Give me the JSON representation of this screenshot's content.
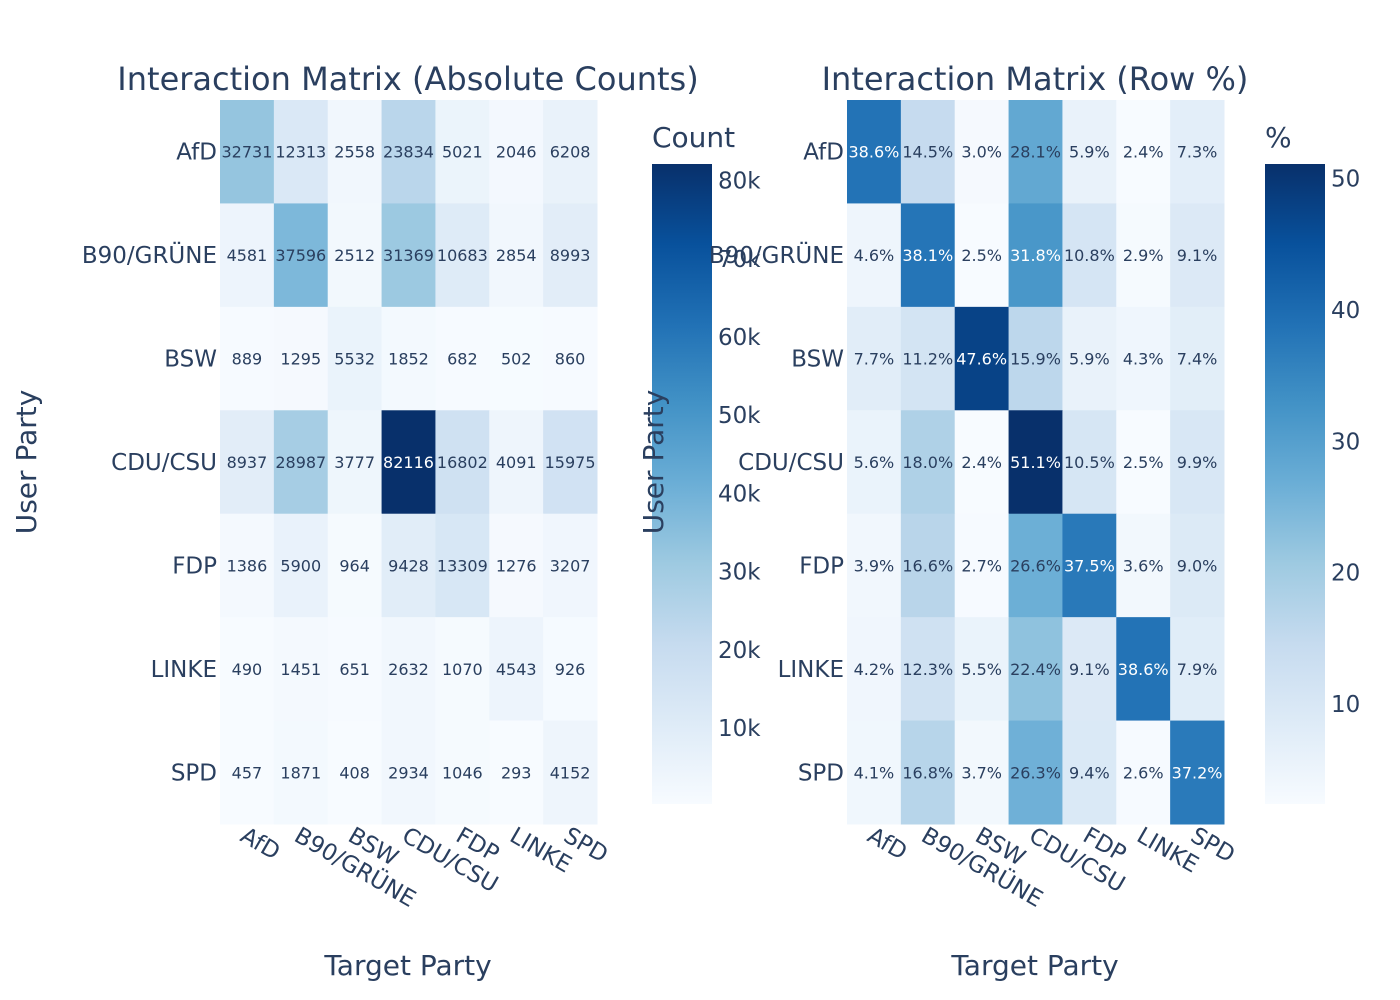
{
  "chart_data": [
    {
      "type": "heatmap",
      "title": "Interaction Matrix (Absolute Counts)",
      "xlabel": "Target Party",
      "ylabel": "User Party",
      "x": [
        "AfD",
        "B90/GRÜNE",
        "BSW",
        "CDU/CSU",
        "FDP",
        "LINKE",
        "SPD"
      ],
      "y": [
        "AfD",
        "B90/GRÜNE",
        "BSW",
        "CDU/CSU",
        "FDP",
        "LINKE",
        "SPD"
      ],
      "z": [
        [
          32731,
          12313,
          2558,
          23834,
          5021,
          2046,
          6208
        ],
        [
          4581,
          37596,
          2512,
          31369,
          10683,
          2854,
          8993
        ],
        [
          889,
          1295,
          5532,
          1852,
          682,
          502,
          860
        ],
        [
          8937,
          28987,
          3777,
          82116,
          16802,
          4091,
          15975
        ],
        [
          1386,
          5900,
          964,
          9428,
          13309,
          1276,
          3207
        ],
        [
          490,
          1451,
          651,
          2632,
          1070,
          4543,
          926
        ],
        [
          457,
          1871,
          408,
          2934,
          1046,
          293,
          4152
        ]
      ],
      "text": [
        [
          "32731",
          "12313",
          "2558",
          "23834",
          "5021",
          "2046",
          "6208"
        ],
        [
          "4581",
          "37596",
          "2512",
          "31369",
          "10683",
          "2854",
          "8993"
        ],
        [
          "889",
          "1295",
          "5532",
          "1852",
          "682",
          "502",
          "860"
        ],
        [
          "8937",
          "28987",
          "3777",
          "82116",
          "16802",
          "4091",
          "15975"
        ],
        [
          "1386",
          "5900",
          "964",
          "9428",
          "13309",
          "1276",
          "3207"
        ],
        [
          "490",
          "1451",
          "651",
          "2632",
          "1070",
          "4543",
          "926"
        ],
        [
          "457",
          "1871",
          "408",
          "2934",
          "1046",
          "293",
          "4152"
        ]
      ],
      "colorscale": "Blues",
      "zrange": [
        293,
        82116
      ],
      "colorbar": {
        "title": "Count",
        "tickvals": [
          10000,
          20000,
          30000,
          40000,
          50000,
          60000,
          70000,
          80000
        ],
        "ticktext": [
          "10k",
          "20k",
          "30k",
          "40k",
          "50k",
          "60k",
          "70k",
          "80k"
        ]
      }
    },
    {
      "type": "heatmap",
      "title": "Interaction Matrix (Row %)",
      "xlabel": "Target Party",
      "ylabel": "User Party",
      "x": [
        "AfD",
        "B90/GRÜNE",
        "BSW",
        "CDU/CSU",
        "FDP",
        "LINKE",
        "SPD"
      ],
      "y": [
        "AfD",
        "B90/GRÜNE",
        "BSW",
        "CDU/CSU",
        "FDP",
        "LINKE",
        "SPD"
      ],
      "z": [
        [
          38.6,
          14.5,
          3.0,
          28.1,
          5.9,
          2.4,
          7.3
        ],
        [
          4.6,
          38.1,
          2.5,
          31.8,
          10.8,
          2.9,
          9.1
        ],
        [
          7.7,
          11.2,
          47.6,
          15.9,
          5.9,
          4.3,
          7.4
        ],
        [
          5.6,
          18.0,
          2.4,
          51.1,
          10.5,
          2.5,
          9.9
        ],
        [
          3.9,
          16.6,
          2.7,
          26.6,
          37.5,
          3.6,
          9.0
        ],
        [
          4.2,
          12.3,
          5.5,
          22.4,
          9.1,
          38.6,
          7.9
        ],
        [
          4.1,
          16.8,
          3.7,
          26.3,
          9.4,
          2.6,
          37.2
        ]
      ],
      "text": [
        [
          "38.6%",
          "14.5%",
          "3.0%",
          "28.1%",
          "5.9%",
          "2.4%",
          "7.3%"
        ],
        [
          "4.6%",
          "38.1%",
          "2.5%",
          "31.8%",
          "10.8%",
          "2.9%",
          "9.1%"
        ],
        [
          "7.7%",
          "11.2%",
          "47.6%",
          "15.9%",
          "5.9%",
          "4.3%",
          "7.4%"
        ],
        [
          "5.6%",
          "18.0%",
          "2.4%",
          "51.1%",
          "10.5%",
          "2.5%",
          "9.9%"
        ],
        [
          "3.9%",
          "16.6%",
          "2.7%",
          "26.6%",
          "37.5%",
          "3.6%",
          "9.0%"
        ],
        [
          "4.2%",
          "12.3%",
          "5.5%",
          "22.4%",
          "9.1%",
          "38.6%",
          "7.9%"
        ],
        [
          "4.1%",
          "16.8%",
          "3.7%",
          "26.3%",
          "9.4%",
          "2.6%",
          "37.2%"
        ]
      ],
      "colorscale": "Blues",
      "zrange": [
        2.4,
        51.1
      ],
      "colorbar": {
        "title": "%",
        "tickvals": [
          10,
          20,
          30,
          40,
          50
        ],
        "ticktext": [
          "10",
          "20",
          "30",
          "40",
          "50"
        ]
      }
    }
  ]
}
